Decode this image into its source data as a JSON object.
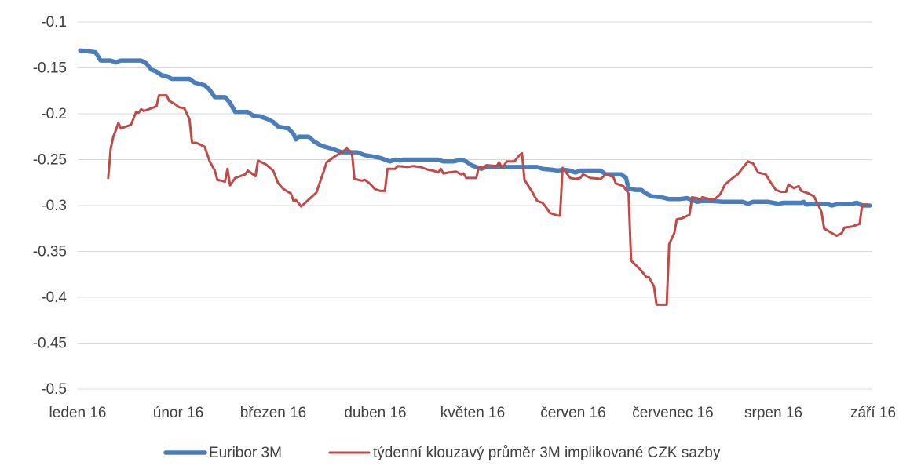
{
  "chart_data": {
    "type": "line",
    "title": "",
    "xlabel": "",
    "ylabel": "",
    "x_ticks": [
      "leden 16",
      "únor 16",
      "březen 16",
      "duben 16",
      "květen 16",
      "červen 16",
      "červenec 16",
      "srpen 16",
      "září 16"
    ],
    "y_ticks": [
      "-0.1",
      "-0.15",
      "-0.2",
      "-0.25",
      "-0.3",
      "-0.35",
      "-0.4",
      "-0.45",
      "-0.5"
    ],
    "ylim": [
      -0.5,
      -0.1
    ],
    "grid": "horizontal",
    "legend_position": "bottom",
    "colors": {
      "euribor": "#4a7ebb",
      "czk": "#be4b48"
    },
    "series": [
      {
        "name": "Euribor 3M",
        "color": "#4a7ebb",
        "points": [
          [
            1,
            -0.131
          ],
          [
            4,
            -0.132
          ],
          [
            7,
            -0.133
          ],
          [
            9,
            -0.142
          ],
          [
            13,
            -0.142
          ],
          [
            15,
            -0.144
          ],
          [
            17,
            -0.142
          ],
          [
            25,
            -0.142
          ],
          [
            27,
            -0.145
          ],
          [
            29,
            -0.152
          ],
          [
            31,
            -0.154
          ],
          [
            33,
            -0.158
          ],
          [
            35,
            -0.159
          ],
          [
            37,
            -0.162
          ],
          [
            44,
            -0.162
          ],
          [
            46,
            -0.166
          ],
          [
            50,
            -0.169
          ],
          [
            52,
            -0.174
          ],
          [
            54,
            -0.182
          ],
          [
            58,
            -0.182
          ],
          [
            60,
            -0.188
          ],
          [
            62,
            -0.198
          ],
          [
            67,
            -0.198
          ],
          [
            69,
            -0.202
          ],
          [
            72,
            -0.203
          ],
          [
            75,
            -0.206
          ],
          [
            77,
            -0.209
          ],
          [
            79,
            -0.214
          ],
          [
            83,
            -0.216
          ],
          [
            85,
            -0.222
          ],
          [
            86,
            -0.228
          ],
          [
            87,
            -0.225
          ],
          [
            91,
            -0.225
          ],
          [
            93,
            -0.23
          ],
          [
            96,
            -0.235
          ],
          [
            100,
            -0.238
          ],
          [
            102,
            -0.24
          ],
          [
            104,
            -0.242
          ],
          [
            110,
            -0.242
          ],
          [
            113,
            -0.245
          ],
          [
            117,
            -0.247
          ],
          [
            119,
            -0.248
          ],
          [
            121,
            -0.25
          ],
          [
            123,
            -0.252
          ],
          [
            125,
            -0.25
          ],
          [
            127,
            -0.251
          ],
          [
            128,
            -0.25
          ],
          [
            142,
            -0.25
          ],
          [
            144,
            -0.252
          ],
          [
            148,
            -0.252
          ],
          [
            151,
            -0.25
          ],
          [
            153,
            -0.252
          ],
          [
            155,
            -0.256
          ],
          [
            157,
            -0.258
          ],
          [
            159,
            -0.26
          ],
          [
            161,
            -0.258
          ],
          [
            181,
            -0.258
          ],
          [
            183,
            -0.26
          ],
          [
            187,
            -0.261
          ],
          [
            189,
            -0.262
          ],
          [
            191,
            -0.261
          ],
          [
            194,
            -0.262
          ],
          [
            196,
            -0.264
          ],
          [
            198,
            -0.262
          ],
          [
            206,
            -0.262
          ],
          [
            208,
            -0.266
          ],
          [
            214,
            -0.266
          ],
          [
            216,
            -0.27
          ],
          [
            217,
            -0.282
          ],
          [
            220,
            -0.283
          ],
          [
            222,
            -0.283
          ],
          [
            224,
            -0.287
          ],
          [
            226,
            -0.29
          ],
          [
            230,
            -0.291
          ],
          [
            233,
            -0.293
          ],
          [
            237,
            -0.293
          ],
          [
            240,
            -0.292
          ],
          [
            242,
            -0.294
          ],
          [
            244,
            -0.296
          ],
          [
            246,
            -0.295
          ],
          [
            250,
            -0.295
          ],
          [
            254,
            -0.296
          ],
          [
            262,
            -0.296
          ],
          [
            264,
            -0.298
          ],
          [
            266,
            -0.296
          ],
          [
            272,
            -0.296
          ],
          [
            276,
            -0.298
          ],
          [
            278,
            -0.297
          ],
          [
            285,
            -0.297
          ],
          [
            286,
            -0.296
          ],
          [
            287,
            -0.299
          ],
          [
            291,
            -0.298
          ],
          [
            295,
            -0.298
          ],
          [
            297,
            -0.3
          ],
          [
            300,
            -0.298
          ],
          [
            305,
            -0.298
          ],
          [
            307,
            -0.297
          ],
          [
            309,
            -0.3
          ],
          [
            312,
            -0.3
          ]
        ]
      },
      {
        "name": "týdenní klouzavý průměr 3M implikované CZK sazby",
        "color": "#be4b48",
        "points": [
          [
            12,
            -0.27
          ],
          [
            13,
            -0.238
          ],
          [
            14,
            -0.225
          ],
          [
            15,
            -0.218
          ],
          [
            16,
            -0.21
          ],
          [
            17,
            -0.216
          ],
          [
            21,
            -0.212
          ],
          [
            22,
            -0.205
          ],
          [
            23,
            -0.198
          ],
          [
            24,
            -0.199
          ],
          [
            25,
            -0.195
          ],
          [
            26,
            -0.197
          ],
          [
            28,
            -0.195
          ],
          [
            31,
            -0.192
          ],
          [
            32,
            -0.18
          ],
          [
            35,
            -0.18
          ],
          [
            36,
            -0.186
          ],
          [
            38,
            -0.189
          ],
          [
            40,
            -0.193
          ],
          [
            42,
            -0.194
          ],
          [
            44,
            -0.206
          ],
          [
            45,
            -0.231
          ],
          [
            47,
            -0.232
          ],
          [
            50,
            -0.236
          ],
          [
            52,
            -0.252
          ],
          [
            54,
            -0.262
          ],
          [
            55,
            -0.272
          ],
          [
            58,
            -0.274
          ],
          [
            59,
            -0.26
          ],
          [
            60,
            -0.278
          ],
          [
            62,
            -0.27
          ],
          [
            64,
            -0.268
          ],
          [
            66,
            -0.266
          ],
          [
            67,
            -0.262
          ],
          [
            69,
            -0.266
          ],
          [
            70,
            -0.268
          ],
          [
            71,
            -0.251
          ],
          [
            74,
            -0.255
          ],
          [
            77,
            -0.262
          ],
          [
            79,
            -0.276
          ],
          [
            81,
            -0.282
          ],
          [
            84,
            -0.287
          ],
          [
            85,
            -0.295
          ],
          [
            86,
            -0.294
          ],
          [
            88,
            -0.301
          ],
          [
            90,
            -0.296
          ],
          [
            94,
            -0.286
          ],
          [
            97,
            -0.262
          ],
          [
            98,
            -0.253
          ],
          [
            101,
            -0.247
          ],
          [
            105,
            -0.24
          ],
          [
            106,
            -0.238
          ],
          [
            108,
            -0.242
          ],
          [
            109,
            -0.271
          ],
          [
            112,
            -0.273
          ],
          [
            113,
            -0.272
          ],
          [
            115,
            -0.276
          ],
          [
            117,
            -0.282
          ],
          [
            119,
            -0.284
          ],
          [
            121,
            -0.284
          ],
          [
            122,
            -0.26
          ],
          [
            125,
            -0.26
          ],
          [
            126,
            -0.257
          ],
          [
            130,
            -0.258
          ],
          [
            132,
            -0.257
          ],
          [
            135,
            -0.258
          ],
          [
            138,
            -0.261
          ],
          [
            140,
            -0.262
          ],
          [
            142,
            -0.264
          ],
          [
            143,
            -0.26
          ],
          [
            144,
            -0.265
          ],
          [
            146,
            -0.264
          ],
          [
            149,
            -0.263
          ],
          [
            151,
            -0.266
          ],
          [
            152,
            -0.265
          ],
          [
            153,
            -0.27
          ],
          [
            157,
            -0.27
          ],
          [
            158,
            -0.258
          ],
          [
            160,
            -0.259
          ],
          [
            161,
            -0.256
          ],
          [
            165,
            -0.257
          ],
          [
            166,
            -0.253
          ],
          [
            167,
            -0.258
          ],
          [
            168,
            -0.256
          ],
          [
            169,
            -0.252
          ],
          [
            172,
            -0.252
          ],
          [
            174,
            -0.245
          ],
          [
            175,
            -0.243
          ],
          [
            176,
            -0.272
          ],
          [
            179,
            -0.285
          ],
          [
            181,
            -0.295
          ],
          [
            183,
            -0.297
          ],
          [
            184,
            -0.3
          ],
          [
            186,
            -0.308
          ],
          [
            189,
            -0.311
          ],
          [
            190,
            -0.311
          ],
          [
            191,
            -0.259
          ],
          [
            194,
            -0.27
          ],
          [
            196,
            -0.271
          ],
          [
            198,
            -0.27
          ],
          [
            199,
            -0.266
          ],
          [
            202,
            -0.27
          ],
          [
            206,
            -0.271
          ],
          [
            208,
            -0.266
          ],
          [
            211,
            -0.269
          ],
          [
            212,
            -0.276
          ],
          [
            215,
            -0.279
          ],
          [
            217,
            -0.287
          ],
          [
            218,
            -0.36
          ],
          [
            221,
            -0.368
          ],
          [
            222,
            -0.371
          ],
          [
            224,
            -0.378
          ],
          [
            225,
            -0.378
          ],
          [
            227,
            -0.388
          ],
          [
            228,
            -0.408
          ],
          [
            232,
            -0.408
          ],
          [
            233,
            -0.342
          ],
          [
            235,
            -0.33
          ],
          [
            236,
            -0.315
          ],
          [
            238,
            -0.314
          ],
          [
            241,
            -0.31
          ],
          [
            242,
            -0.291
          ],
          [
            244,
            -0.292
          ],
          [
            245,
            -0.294
          ],
          [
            246,
            -0.291
          ],
          [
            249,
            -0.293
          ],
          [
            251,
            -0.293
          ],
          [
            253,
            -0.288
          ],
          [
            255,
            -0.277
          ],
          [
            258,
            -0.27
          ],
          [
            260,
            -0.266
          ],
          [
            262,
            -0.259
          ],
          [
            264,
            -0.252
          ],
          [
            266,
            -0.254
          ],
          [
            268,
            -0.264
          ],
          [
            271,
            -0.266
          ],
          [
            273,
            -0.275
          ],
          [
            275,
            -0.283
          ],
          [
            277,
            -0.285
          ],
          [
            279,
            -0.285
          ],
          [
            280,
            -0.277
          ],
          [
            282,
            -0.281
          ],
          [
            284,
            -0.279
          ],
          [
            285,
            -0.284
          ],
          [
            288,
            -0.287
          ],
          [
            290,
            -0.29
          ],
          [
            292,
            -0.301
          ],
          [
            293,
            -0.307
          ],
          [
            294,
            -0.325
          ],
          [
            297,
            -0.33
          ],
          [
            299,
            -0.333
          ],
          [
            301,
            -0.33
          ],
          [
            302,
            -0.324
          ],
          [
            305,
            -0.323
          ],
          [
            306,
            -0.322
          ],
          [
            308,
            -0.32
          ],
          [
            309,
            -0.299
          ],
          [
            311,
            -0.299
          ]
        ]
      }
    ]
  }
}
